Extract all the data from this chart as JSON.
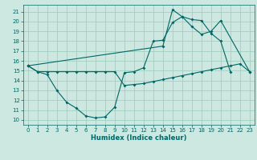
{
  "xlabel": "Humidex (Indice chaleur)",
  "bg_color": "#cce8e0",
  "grid_color": "#99ccbb",
  "line_color": "#006666",
  "xlim": [
    -0.5,
    23.5
  ],
  "ylim": [
    9.5,
    21.7
  ],
  "yticks": [
    10,
    11,
    12,
    13,
    14,
    15,
    16,
    17,
    18,
    19,
    20,
    21
  ],
  "xticks": [
    0,
    1,
    2,
    3,
    4,
    5,
    6,
    7,
    8,
    9,
    10,
    11,
    12,
    13,
    14,
    15,
    16,
    17,
    18,
    19,
    20,
    21,
    22,
    23
  ],
  "line1_x": [
    0,
    1,
    2,
    3,
    4,
    5,
    6,
    7,
    8,
    9,
    10,
    11,
    12,
    13,
    14,
    15,
    16,
    17,
    18,
    19,
    20,
    21
  ],
  "line1_y": [
    15.5,
    14.9,
    14.6,
    13.0,
    11.8,
    11.2,
    10.4,
    10.2,
    10.3,
    11.3,
    14.8,
    14.9,
    15.3,
    18.0,
    18.1,
    19.9,
    20.5,
    20.2,
    20.1,
    18.8,
    18.0,
    14.9
  ],
  "line2_x": [
    0,
    1,
    2,
    3,
    4,
    5,
    6,
    7,
    8,
    9,
    10,
    11,
    12,
    13,
    14,
    15,
    16,
    17,
    18,
    19,
    20,
    21,
    22,
    23
  ],
  "line2_y": [
    15.5,
    14.9,
    14.9,
    14.9,
    14.9,
    14.9,
    14.9,
    14.9,
    14.9,
    14.9,
    13.5,
    13.6,
    13.7,
    13.9,
    14.1,
    14.3,
    14.5,
    14.7,
    14.9,
    15.1,
    15.3,
    15.5,
    15.7,
    14.9
  ],
  "line3_x": [
    0,
    14,
    15,
    16,
    17,
    18,
    19,
    20,
    23
  ],
  "line3_y": [
    15.5,
    17.5,
    21.2,
    20.5,
    19.5,
    18.7,
    19.0,
    20.1,
    14.9
  ]
}
